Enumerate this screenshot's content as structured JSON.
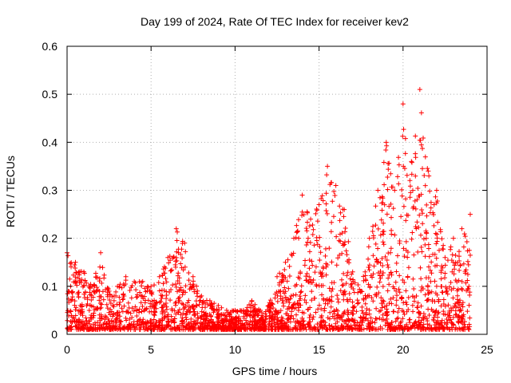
{
  "chart_data": {
    "type": "scatter",
    "title": "Day 199 of 2024, Rate Of TEC Index for receiver kev2",
    "xlabel": "GPS time / hours",
    "ylabel": "ROTI / TECUs",
    "xlim": [
      0,
      25
    ],
    "ylim": [
      0,
      0.6
    ],
    "xticks": [
      0,
      5,
      10,
      15,
      20,
      25
    ],
    "xtick_labels": [
      "0",
      "5",
      "10",
      "15",
      "20",
      "25"
    ],
    "yticks": [
      0,
      0.1,
      0.2,
      0.3,
      0.4,
      0.5,
      0.6
    ],
    "ytick_labels": [
      "0",
      "0.1",
      "0.2",
      "0.3",
      "0.4",
      "0.5",
      "0.6"
    ],
    "grid": true,
    "marker": "+",
    "series_color": "#ff0000",
    "series": [
      {
        "name": "ROTI",
        "envelope": {
          "x": [
            0,
            0.5,
            1,
            1.5,
            2,
            2.5,
            3,
            3.5,
            4,
            4.5,
            5,
            5.5,
            6,
            6.5,
            7,
            7.5,
            8,
            8.5,
            9,
            9.5,
            10,
            10.5,
            11,
            11.5,
            12,
            12.5,
            13,
            13.5,
            14,
            14.5,
            15,
            15.5,
            16,
            16.5,
            17,
            17.5,
            18,
            18.5,
            19,
            19.5,
            20,
            20.5,
            21,
            21.5,
            22,
            22.5,
            23,
            23.5,
            24
          ],
          "y": [
            0.17,
            0.15,
            0.13,
            0.1,
            0.17,
            0.09,
            0.1,
            0.12,
            0.11,
            0.11,
            0.1,
            0.12,
            0.16,
            0.22,
            0.19,
            0.12,
            0.08,
            0.07,
            0.06,
            0.05,
            0.05,
            0.05,
            0.07,
            0.05,
            0.06,
            0.12,
            0.15,
            0.2,
            0.29,
            0.24,
            0.27,
            0.35,
            0.31,
            0.26,
            0.13,
            0.09,
            0.2,
            0.3,
            0.4,
            0.3,
            0.48,
            0.36,
            0.51,
            0.34,
            0.3,
            0.16,
            0.2,
            0.22,
            0.25
          ]
        },
        "floor": 0.01
      }
    ]
  }
}
